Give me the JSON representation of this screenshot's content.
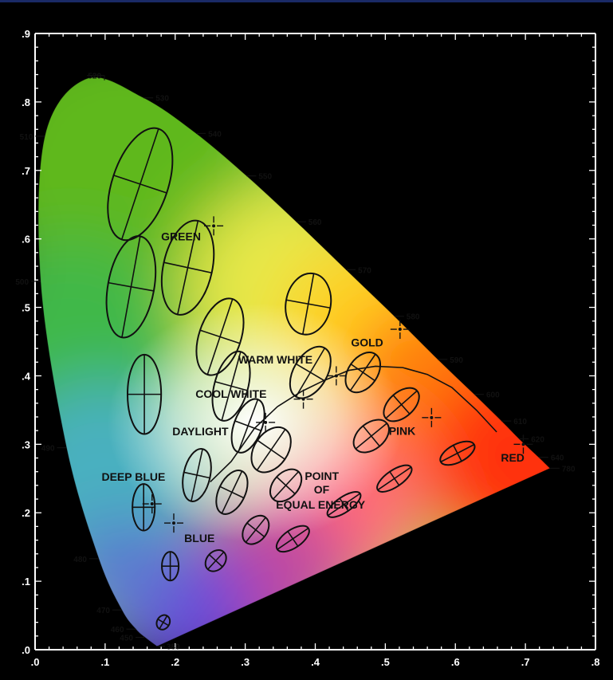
{
  "chart_data": {
    "type": "scatter",
    "title": "",
    "xlabel": "",
    "ylabel": "",
    "xlim": [
      0,
      0.8
    ],
    "ylim": [
      0,
      0.9
    ],
    "xticks": [
      {
        "value": 0.0,
        "label": ".0"
      },
      {
        "value": 0.1,
        "label": ".1"
      },
      {
        "value": 0.2,
        "label": ".2"
      },
      {
        "value": 0.3,
        "label": ".3"
      },
      {
        "value": 0.4,
        "label": ".4"
      },
      {
        "value": 0.5,
        "label": ".5"
      },
      {
        "value": 0.6,
        "label": ".6"
      },
      {
        "value": 0.7,
        "label": ".7"
      },
      {
        "value": 0.8,
        "label": ".8"
      }
    ],
    "yticks": [
      {
        "value": 0.0,
        "label": ".0"
      },
      {
        "value": 0.1,
        "label": ".1"
      },
      {
        "value": 0.2,
        "label": ".2"
      },
      {
        "value": 0.3,
        "label": ".3"
      },
      {
        "value": 0.4,
        "label": ".4"
      },
      {
        "value": 0.5,
        "label": ".5"
      },
      {
        "value": 0.6,
        "label": ".6"
      },
      {
        "value": 0.7,
        "label": ".7"
      },
      {
        "value": 0.8,
        "label": ".8"
      },
      {
        "value": 0.9,
        "label": ".9"
      }
    ],
    "spectral_locus": [
      {
        "label": "380",
        "x": 0.174,
        "y": 0.005
      },
      {
        "label": "450",
        "x": 0.157,
        "y": 0.018
      },
      {
        "label": "460",
        "x": 0.144,
        "y": 0.03
      },
      {
        "label": "470",
        "x": 0.124,
        "y": 0.058
      },
      {
        "label": "480",
        "x": 0.091,
        "y": 0.133
      },
      {
        "label": "490",
        "x": 0.045,
        "y": 0.295
      },
      {
        "label": "500",
        "x": 0.008,
        "y": 0.538
      },
      {
        "label": "510",
        "x": 0.014,
        "y": 0.75
      },
      {
        "label": "520",
        "x": 0.074,
        "y": 0.834
      },
      {
        "label": "530",
        "x": 0.155,
        "y": 0.806
      },
      {
        "label": "540",
        "x": 0.23,
        "y": 0.754
      },
      {
        "label": "550",
        "x": 0.302,
        "y": 0.692
      },
      {
        "label": "560",
        "x": 0.373,
        "y": 0.625
      },
      {
        "label": "570",
        "x": 0.444,
        "y": 0.555
      },
      {
        "label": "580",
        "x": 0.513,
        "y": 0.487
      },
      {
        "label": "590",
        "x": 0.575,
        "y": 0.424
      },
      {
        "label": "600",
        "x": 0.627,
        "y": 0.373
      },
      {
        "label": "610",
        "x": 0.666,
        "y": 0.334
      },
      {
        "label": "620",
        "x": 0.691,
        "y": 0.308
      },
      {
        "label": "640",
        "x": 0.719,
        "y": 0.281
      },
      {
        "label": "780",
        "x": 0.735,
        "y": 0.265
      }
    ],
    "planckian_locus": [
      {
        "x": 0.25,
        "y": 0.245
      },
      {
        "x": 0.28,
        "y": 0.275
      },
      {
        "x": 0.313,
        "y": 0.323
      },
      {
        "x": 0.346,
        "y": 0.355
      },
      {
        "x": 0.38,
        "y": 0.377
      },
      {
        "x": 0.412,
        "y": 0.393
      },
      {
        "x": 0.448,
        "y": 0.408
      },
      {
        "x": 0.486,
        "y": 0.414
      },
      {
        "x": 0.525,
        "y": 0.412
      },
      {
        "x": 0.56,
        "y": 0.402
      },
      {
        "x": 0.595,
        "y": 0.383
      },
      {
        "x": 0.63,
        "y": 0.35
      },
      {
        "x": 0.659,
        "y": 0.318
      }
    ],
    "ellipses": [
      {
        "x": 0.15,
        "y": 0.68,
        "a": 0.085,
        "b": 0.04,
        "angle": 72
      },
      {
        "x": 0.137,
        "y": 0.53,
        "a": 0.075,
        "b": 0.033,
        "angle": 80
      },
      {
        "x": 0.218,
        "y": 0.558,
        "a": 0.07,
        "b": 0.035,
        "angle": 78
      },
      {
        "x": 0.156,
        "y": 0.373,
        "a": 0.058,
        "b": 0.024,
        "angle": 90
      },
      {
        "x": 0.264,
        "y": 0.457,
        "a": 0.058,
        "b": 0.03,
        "angle": 72
      },
      {
        "x": 0.28,
        "y": 0.385,
        "a": 0.052,
        "b": 0.024,
        "angle": 75
      },
      {
        "x": 0.39,
        "y": 0.505,
        "a": 0.045,
        "b": 0.032,
        "angle": 80
      },
      {
        "x": 0.393,
        "y": 0.405,
        "a": 0.041,
        "b": 0.024,
        "angle": 60
      },
      {
        "x": 0.304,
        "y": 0.327,
        "a": 0.041,
        "b": 0.02,
        "angle": 70
      },
      {
        "x": 0.337,
        "y": 0.292,
        "a": 0.036,
        "b": 0.024,
        "angle": 56
      },
      {
        "x": 0.231,
        "y": 0.255,
        "a": 0.039,
        "b": 0.019,
        "angle": 78
      },
      {
        "x": 0.155,
        "y": 0.208,
        "a": 0.034,
        "b": 0.016,
        "angle": 90
      },
      {
        "x": 0.281,
        "y": 0.23,
        "a": 0.034,
        "b": 0.019,
        "angle": 65
      },
      {
        "x": 0.358,
        "y": 0.24,
        "a": 0.027,
        "b": 0.018,
        "angle": 48
      },
      {
        "x": 0.468,
        "y": 0.405,
        "a": 0.032,
        "b": 0.021,
        "angle": 56
      },
      {
        "x": 0.523,
        "y": 0.358,
        "a": 0.03,
        "b": 0.018,
        "angle": 42
      },
      {
        "x": 0.48,
        "y": 0.312,
        "a": 0.029,
        "b": 0.019,
        "angle": 40
      },
      {
        "x": 0.603,
        "y": 0.287,
        "a": 0.027,
        "b": 0.013,
        "angle": 28
      },
      {
        "x": 0.513,
        "y": 0.25,
        "a": 0.029,
        "b": 0.012,
        "angle": 35
      },
      {
        "x": 0.441,
        "y": 0.212,
        "a": 0.028,
        "b": 0.011,
        "angle": 35
      },
      {
        "x": 0.368,
        "y": 0.162,
        "a": 0.027,
        "b": 0.013,
        "angle": 35
      },
      {
        "x": 0.315,
        "y": 0.175,
        "a": 0.023,
        "b": 0.016,
        "angle": 52
      },
      {
        "x": 0.258,
        "y": 0.13,
        "a": 0.017,
        "b": 0.013,
        "angle": 48
      },
      {
        "x": 0.193,
        "y": 0.122,
        "a": 0.021,
        "b": 0.012,
        "angle": 90
      },
      {
        "x": 0.183,
        "y": 0.04,
        "a": 0.011,
        "b": 0.009,
        "angle": 60
      }
    ],
    "markers": [
      {
        "x": 0.255,
        "y": 0.619
      },
      {
        "x": 0.521,
        "y": 0.468
      },
      {
        "x": 0.43,
        "y": 0.4
      },
      {
        "x": 0.383,
        "y": 0.366
      },
      {
        "x": 0.329,
        "y": 0.332
      },
      {
        "x": 0.566,
        "y": 0.339
      },
      {
        "x": 0.697,
        "y": 0.3
      },
      {
        "x": 0.167,
        "y": 0.213
      },
      {
        "x": 0.198,
        "y": 0.185
      }
    ],
    "annotations": [
      {
        "text": "GREEN",
        "x": 0.18,
        "y": 0.598
      },
      {
        "text": "GOLD",
        "x": 0.451,
        "y": 0.443
      },
      {
        "text": "WARM WHITE",
        "x": 0.29,
        "y": 0.418
      },
      {
        "text": "COOL WHITE",
        "x": 0.229,
        "y": 0.368
      },
      {
        "text": "PINK",
        "x": 0.505,
        "y": 0.314
      },
      {
        "text": "DAYLIGHT",
        "x": 0.196,
        "y": 0.313
      },
      {
        "text": "RED",
        "x": 0.665,
        "y": 0.275
      },
      {
        "text": "DEEP BLUE",
        "x": 0.095,
        "y": 0.247
      },
      {
        "text": "POINT",
        "x": 0.385,
        "y": 0.248
      },
      {
        "text": "OF",
        "x": 0.398,
        "y": 0.228
      },
      {
        "text": "EQUAL ENERGY",
        "x": 0.344,
        "y": 0.206
      },
      {
        "text": "BLUE",
        "x": 0.213,
        "y": 0.157
      }
    ],
    "colors": {
      "background": "#000000",
      "axis": "#ffffff",
      "ink": "#111111"
    }
  }
}
